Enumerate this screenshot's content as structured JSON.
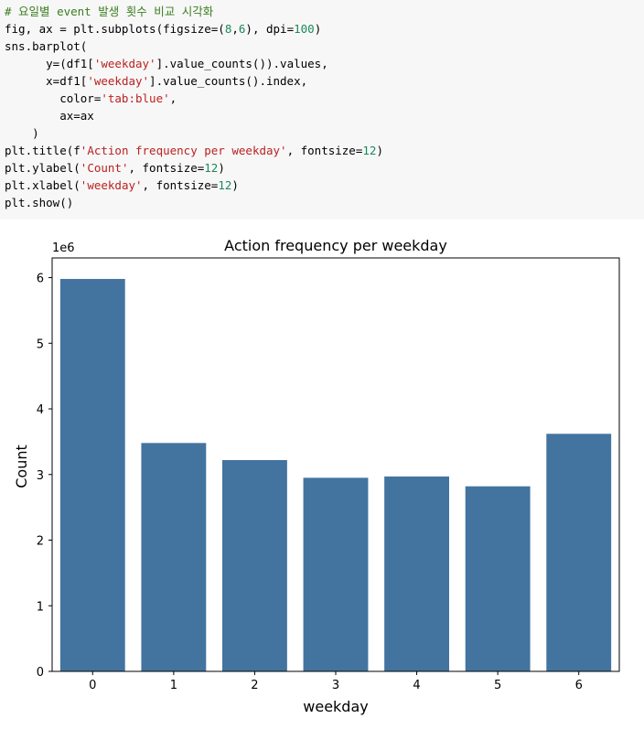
{
  "code": {
    "lines": [
      [
        {
          "t": "# 요일별 event 발생 횟수 비교 시각화",
          "c": "comment"
        }
      ],
      [
        {
          "t": "fig, ax = plt.subplots(figsize=(",
          "c": ""
        },
        {
          "t": "8",
          "c": "num"
        },
        {
          "t": ",",
          "c": ""
        },
        {
          "t": "6",
          "c": "num"
        },
        {
          "t": "), dpi=",
          "c": ""
        },
        {
          "t": "100",
          "c": "num"
        },
        {
          "t": ")",
          "c": ""
        }
      ],
      [
        {
          "t": "sns.barplot(",
          "c": ""
        }
      ],
      [
        {
          "t": "      y=(df1[",
          "c": ""
        },
        {
          "t": "'weekday'",
          "c": "str"
        },
        {
          "t": "].value_counts()).values,",
          "c": ""
        }
      ],
      [
        {
          "t": "      x=df1[",
          "c": ""
        },
        {
          "t": "'weekday'",
          "c": "str"
        },
        {
          "t": "].value_counts().index,",
          "c": ""
        }
      ],
      [
        {
          "t": "        color=",
          "c": ""
        },
        {
          "t": "'tab:blue'",
          "c": "str"
        },
        {
          "t": ",",
          "c": ""
        }
      ],
      [
        {
          "t": "        ax=ax",
          "c": ""
        }
      ],
      [
        {
          "t": "    )",
          "c": ""
        }
      ],
      [
        {
          "t": "plt.title(f",
          "c": ""
        },
        {
          "t": "'Action frequency per weekday'",
          "c": "str"
        },
        {
          "t": ", fontsize=",
          "c": ""
        },
        {
          "t": "12",
          "c": "num"
        },
        {
          "t": ")",
          "c": ""
        }
      ],
      [
        {
          "t": "plt.ylabel(",
          "c": ""
        },
        {
          "t": "'Count'",
          "c": "str"
        },
        {
          "t": ", fontsize=",
          "c": ""
        },
        {
          "t": "12",
          "c": "num"
        },
        {
          "t": ")",
          "c": ""
        }
      ],
      [
        {
          "t": "plt.xlabel(",
          "c": ""
        },
        {
          "t": "'weekday'",
          "c": "str"
        },
        {
          "t": ", fontsize=",
          "c": ""
        },
        {
          "t": "12",
          "c": "num"
        },
        {
          "t": ")",
          "c": ""
        }
      ],
      [
        {
          "t": "plt.show()",
          "c": ""
        }
      ]
    ]
  },
  "chart_data": {
    "type": "bar",
    "title": "Action frequency per weekday",
    "xlabel": "weekday",
    "ylabel": "Count",
    "y_offset_label": "1e6",
    "categories": [
      "0",
      "1",
      "2",
      "3",
      "4",
      "5",
      "6"
    ],
    "values": [
      5.98,
      3.48,
      3.22,
      2.95,
      2.97,
      2.82,
      3.62
    ],
    "ylim": [
      0,
      6.3
    ],
    "yticks": [
      0,
      1,
      2,
      3,
      4,
      5,
      6
    ],
    "bar_color": "#4374a0",
    "grid": false,
    "legend": "none"
  }
}
